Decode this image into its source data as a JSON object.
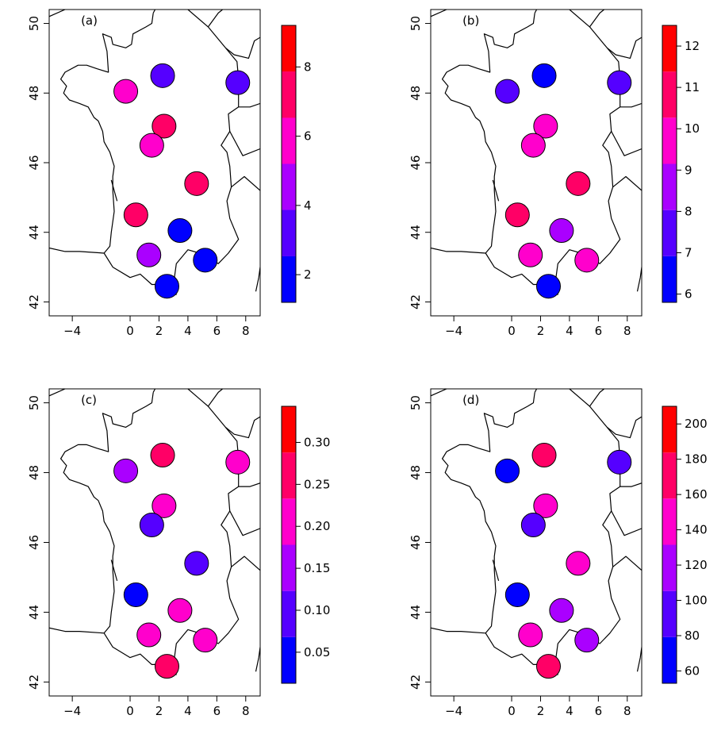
{
  "chart_data": [
    {
      "type": "scatter",
      "panel_label": "(a)",
      "x_ticks": [
        "−4",
        "0",
        "2",
        "4",
        "6",
        "8"
      ],
      "y_ticks": [
        "42",
        "44",
        "46",
        "48",
        "50"
      ],
      "xlim": [
        -5.6,
        9.0
      ],
      "ylim": [
        41.6,
        50.4
      ],
      "points": [
        {
          "x": -0.3,
          "y": 48.05,
          "value": 5.3
        },
        {
          "x": 2.25,
          "y": 48.5,
          "value": 3.6
        },
        {
          "x": 7.45,
          "y": 48.3,
          "value": 3.6
        },
        {
          "x": 2.35,
          "y": 47.05,
          "value": 6.6
        },
        {
          "x": 1.5,
          "y": 46.5,
          "value": 6.0
        },
        {
          "x": 4.6,
          "y": 45.4,
          "value": 7.3
        },
        {
          "x": 0.4,
          "y": 44.5,
          "value": 7.4
        },
        {
          "x": 3.45,
          "y": 44.05,
          "value": 2.2
        },
        {
          "x": 1.3,
          "y": 43.35,
          "value": 5.0
        },
        {
          "x": 5.2,
          "y": 43.2,
          "value": 2.0
        },
        {
          "x": 2.55,
          "y": 42.45,
          "value": 1.5
        }
      ],
      "colorbar": {
        "range": [
          1.2,
          9.2
        ],
        "breaks": [
          1.2,
          2.53,
          3.87,
          5.2,
          6.53,
          7.87,
          9.2
        ],
        "colors": [
          "#0000FF",
          "#5500FF",
          "#AA00FF",
          "#FF00CC",
          "#FF0066",
          "#FF0000"
        ],
        "ticks": [
          2,
          4,
          6,
          8
        ],
        "tick_labels": [
          "2",
          "4",
          "6",
          "8"
        ]
      }
    },
    {
      "type": "scatter",
      "panel_label": "(b)",
      "x_ticks": [
        "−4",
        "0",
        "2",
        "4",
        "6",
        "8"
      ],
      "y_ticks": [
        "42",
        "44",
        "46",
        "48",
        "50"
      ],
      "xlim": [
        -5.6,
        9.0
      ],
      "ylim": [
        41.6,
        50.4
      ],
      "points": [
        {
          "x": -0.3,
          "y": 48.05,
          "value": 7.8
        },
        {
          "x": 2.25,
          "y": 48.5,
          "value": 6.6
        },
        {
          "x": 7.45,
          "y": 48.3,
          "value": 7.8
        },
        {
          "x": 2.35,
          "y": 47.05,
          "value": 9.2
        },
        {
          "x": 1.5,
          "y": 46.5,
          "value": 9.3
        },
        {
          "x": 4.6,
          "y": 45.4,
          "value": 10.8
        },
        {
          "x": 0.4,
          "y": 44.5,
          "value": 10.7
        },
        {
          "x": 3.45,
          "y": 44.05,
          "value": 8.9
        },
        {
          "x": 1.3,
          "y": 43.35,
          "value": 9.6
        },
        {
          "x": 5.2,
          "y": 43.2,
          "value": 9.9
        },
        {
          "x": 2.55,
          "y": 42.45,
          "value": 6.3
        }
      ],
      "colorbar": {
        "range": [
          5.8,
          12.5
        ],
        "breaks": [
          5.8,
          6.917,
          8.033,
          9.15,
          10.267,
          11.383,
          12.5
        ],
        "colors": [
          "#0000FF",
          "#5500FF",
          "#AA00FF",
          "#FF00CC",
          "#FF0066",
          "#FF0000"
        ],
        "ticks": [
          6,
          7,
          8,
          9,
          10,
          11,
          12
        ],
        "tick_labels": [
          "6",
          "7",
          "8",
          "9",
          "10",
          "11",
          "12"
        ]
      }
    },
    {
      "type": "scatter",
      "panel_label": "(c)",
      "x_ticks": [
        "−4",
        "0",
        "2",
        "4",
        "6",
        "8"
      ],
      "y_ticks": [
        "42",
        "44",
        "46",
        "48",
        "50"
      ],
      "xlim": [
        -5.6,
        9.0
      ],
      "ylim": [
        41.6,
        50.4
      ],
      "points": [
        {
          "x": -0.3,
          "y": 48.05,
          "value": 0.13
        },
        {
          "x": 2.25,
          "y": 48.5,
          "value": 0.27
        },
        {
          "x": 7.45,
          "y": 48.3,
          "value": 0.18
        },
        {
          "x": 2.35,
          "y": 47.05,
          "value": 0.19
        },
        {
          "x": 1.5,
          "y": 46.5,
          "value": 0.12
        },
        {
          "x": 4.6,
          "y": 45.4,
          "value": 0.07
        },
        {
          "x": 0.4,
          "y": 44.5,
          "value": 0.06
        },
        {
          "x": 3.45,
          "y": 44.05,
          "value": 0.21
        },
        {
          "x": 1.3,
          "y": 43.35,
          "value": 0.18
        },
        {
          "x": 5.2,
          "y": 43.2,
          "value": 0.21
        },
        {
          "x": 2.55,
          "y": 42.45,
          "value": 0.26
        }
      ],
      "colorbar": {
        "range": [
          0.013,
          0.343
        ],
        "breaks": [
          0.013,
          0.068,
          0.123,
          0.178,
          0.233,
          0.288,
          0.343
        ],
        "colors": [
          "#0000FF",
          "#5500FF",
          "#AA00FF",
          "#FF00CC",
          "#FF0066",
          "#FF0000"
        ],
        "ticks": [
          0.05,
          0.1,
          0.15,
          0.2,
          0.25,
          0.3
        ],
        "tick_labels": [
          "0.05",
          "0.10",
          "0.15",
          "0.20",
          "0.25",
          "0.30"
        ]
      }
    },
    {
      "type": "scatter",
      "panel_label": "(d)",
      "x_ticks": [
        "−4",
        "0",
        "2",
        "4",
        "6",
        "8"
      ],
      "y_ticks": [
        "42",
        "44",
        "46",
        "48",
        "50"
      ],
      "xlim": [
        -5.6,
        9.0
      ],
      "ylim": [
        41.6,
        50.4
      ],
      "points": [
        {
          "x": -0.3,
          "y": 48.05,
          "value": 65
        },
        {
          "x": 2.25,
          "y": 48.5,
          "value": 165
        },
        {
          "x": 7.45,
          "y": 48.3,
          "value": 95
        },
        {
          "x": 2.35,
          "y": 47.05,
          "value": 140
        },
        {
          "x": 1.5,
          "y": 46.5,
          "value": 95
        },
        {
          "x": 4.6,
          "y": 45.4,
          "value": 145
        },
        {
          "x": 0.4,
          "y": 44.5,
          "value": 65
        },
        {
          "x": 3.45,
          "y": 44.05,
          "value": 125
        },
        {
          "x": 1.3,
          "y": 43.35,
          "value": 140
        },
        {
          "x": 5.2,
          "y": 43.2,
          "value": 125
        },
        {
          "x": 2.55,
          "y": 42.45,
          "value": 170
        }
      ],
      "colorbar": {
        "range": [
          53,
          210
        ],
        "breaks": [
          53,
          79.2,
          105.3,
          131.5,
          157.7,
          183.8,
          210
        ],
        "colors": [
          "#0000FF",
          "#5500FF",
          "#AA00FF",
          "#FF00CC",
          "#FF0066",
          "#FF0000"
        ],
        "ticks": [
          60,
          80,
          100,
          120,
          140,
          160,
          180,
          200
        ],
        "tick_labels": [
          "60",
          "80",
          "100",
          "120",
          "140",
          "160",
          "180",
          "200"
        ]
      }
    }
  ]
}
